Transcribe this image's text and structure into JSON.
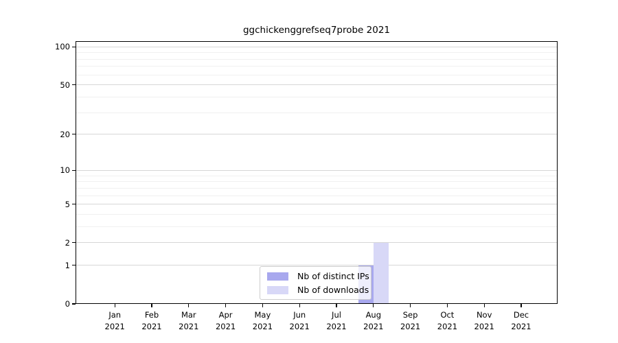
{
  "colors": {
    "background": "#ffffff",
    "axis": "#000000",
    "grid_major": "#d6d6d6",
    "grid_minor": "#f0f0f0",
    "legend_border": "#cccccc",
    "bar_distinct_ips": "#a8a8ee",
    "bar_downloads": "#d8d8f7"
  },
  "chart_data": {
    "type": "bar",
    "title": "ggchickenggrefseq7probe 2021",
    "categories": [
      "Jan 2021",
      "Feb 2021",
      "Mar 2021",
      "Apr 2021",
      "May 2021",
      "Jun 2021",
      "Jul 2021",
      "Aug 2021",
      "Sep 2021",
      "Oct 2021",
      "Nov 2021",
      "Dec 2021"
    ],
    "x_tick_labels": {
      "months": [
        "Jan",
        "Feb",
        "Mar",
        "Apr",
        "May",
        "Jun",
        "Jul",
        "Aug",
        "Sep",
        "Oct",
        "Nov",
        "Dec"
      ],
      "year": "2021"
    },
    "series": [
      {
        "name": "Nb of distinct IPs",
        "color": "#a8a8ee",
        "values": [
          0,
          0,
          0,
          0,
          0,
          0,
          0,
          1,
          0,
          0,
          0,
          0
        ]
      },
      {
        "name": "Nb of downloads",
        "color": "#d8d8f7",
        "values": [
          0,
          0,
          0,
          0,
          0,
          0,
          0,
          2,
          0,
          0,
          0,
          0
        ]
      }
    ],
    "xlabel": "",
    "ylabel": "",
    "y_ticks": [
      0,
      1,
      2,
      5,
      10,
      20,
      50,
      100
    ],
    "y_minor_gridlines": [
      3,
      4,
      6,
      7,
      8,
      9,
      30,
      40,
      60,
      70,
      80,
      90
    ],
    "yscale": "log1p",
    "ylim": [
      0,
      110
    ],
    "grid": true,
    "legend_position": "inside-bottom-center"
  }
}
